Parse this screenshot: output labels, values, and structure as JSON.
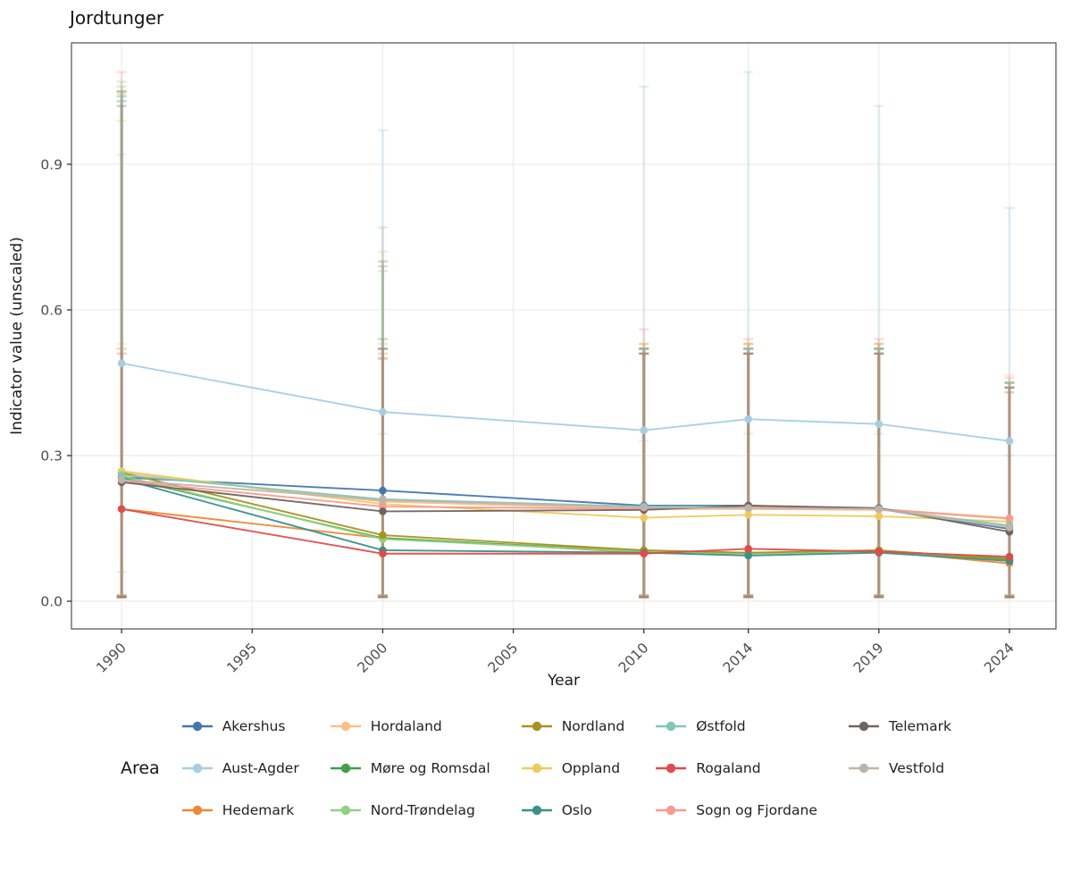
{
  "chart_data": {
    "type": "line",
    "title": "Jordtunger",
    "xlabel": "Year",
    "ylabel": "Indicator value (unscaled)",
    "legend_title": "Area",
    "legend_position": "bottom",
    "grid": "major",
    "x": [
      1990,
      2000,
      2010,
      2014,
      2019,
      2024
    ],
    "x_tick_labels": [
      "1990",
      "1995",
      "2000",
      "2005",
      "2010",
      "2014",
      "2019",
      "2024"
    ],
    "x_ticks": [
      1990,
      1995,
      2000,
      2005,
      2010,
      2014,
      2019,
      2024
    ],
    "y_tick_labels": [
      "0.0",
      "0.3",
      "0.6",
      "0.9"
    ],
    "y_ticks": [
      0.0,
      0.3,
      0.6,
      0.9
    ],
    "ylim": [
      -0.057,
      1.15
    ],
    "xlim": [
      1988.08,
      2025.78
    ],
    "series": [
      {
        "name": "Akershus",
        "color": "#4478AB",
        "values": [
          0.255,
          0.228,
          0.197,
          0.197,
          0.19,
          0.149
        ],
        "err_hi": [
          1.03,
          0.52,
          0.52,
          0.52,
          0.52,
          0.44
        ],
        "err_lo": [
          0.01,
          0.012,
          0.01,
          0.012,
          0.012,
          0.01
        ]
      },
      {
        "name": "Aust-Agder",
        "color": "#A6CEE3",
        "values": [
          0.49,
          0.39,
          0.352,
          0.375,
          0.365,
          0.33
        ],
        "err_hi": [
          0.92,
          0.97,
          1.06,
          1.09,
          1.02,
          0.81
        ],
        "err_lo": [
          0.06,
          0.345,
          0.33,
          0.345,
          0.345,
          0.3
        ]
      },
      {
        "name": "Hedemark",
        "color": "#EF8733",
        "values": [
          0.19,
          0.13,
          0.1,
          0.098,
          0.103,
          0.078
        ],
        "err_hi": [
          0.52,
          0.51,
          0.51,
          0.51,
          0.51,
          0.44
        ],
        "err_lo": [
          0.008,
          0.01,
          0.008,
          0.01,
          0.01,
          0.008
        ]
      },
      {
        "name": "Hordaland",
        "color": "#FAC089",
        "values": [
          0.265,
          0.205,
          0.19,
          0.19,
          0.188,
          0.17
        ],
        "err_hi": [
          0.53,
          0.72,
          0.52,
          0.53,
          0.53,
          0.465
        ],
        "err_lo": [
          0.012,
          0.012,
          0.012,
          0.012,
          0.012,
          0.012
        ]
      },
      {
        "name": "Møre og Romsdal",
        "color": "#3FA047",
        "values": [
          0.255,
          0.13,
          0.103,
          0.099,
          0.104,
          0.088
        ],
        "err_hi": [
          1.05,
          0.54,
          0.52,
          0.51,
          0.52,
          0.44
        ],
        "err_lo": [
          0.01,
          0.01,
          0.01,
          0.01,
          0.01,
          0.01
        ]
      },
      {
        "name": "Nord-Trøndelag",
        "color": "#90D282",
        "values": [
          0.258,
          0.128,
          0.102,
          0.098,
          0.102,
          0.085
        ],
        "err_hi": [
          1.07,
          0.52,
          0.51,
          0.52,
          0.51,
          0.44
        ],
        "err_lo": [
          0.01,
          0.01,
          0.01,
          0.01,
          0.01,
          0.01
        ]
      },
      {
        "name": "Nordland",
        "color": "#A8931D",
        "values": [
          0.265,
          0.136,
          0.105,
          0.1,
          0.105,
          0.086
        ],
        "err_hi": [
          1.05,
          0.69,
          0.53,
          0.53,
          0.53,
          0.45
        ],
        "err_lo": [
          0.008,
          0.008,
          0.008,
          0.008,
          0.008,
          0.008
        ]
      },
      {
        "name": "Oppland",
        "color": "#EDCB5E",
        "values": [
          0.268,
          0.2,
          0.172,
          0.178,
          0.175,
          0.164
        ],
        "err_hi": [
          0.99,
          0.5,
          0.53,
          0.53,
          0.52,
          0.45
        ],
        "err_lo": [
          0.012,
          0.012,
          0.012,
          0.012,
          0.012,
          0.012
        ]
      },
      {
        "name": "Oslo",
        "color": "#39918A",
        "values": [
          0.252,
          0.105,
          0.1,
          0.094,
          0.1,
          0.083
        ],
        "err_hi": [
          1.04,
          0.7,
          0.52,
          0.52,
          0.52,
          0.45
        ],
        "err_lo": [
          0.01,
          0.01,
          0.01,
          0.01,
          0.01,
          0.01
        ]
      },
      {
        "name": "Østfold",
        "color": "#82C6B8",
        "values": [
          0.26,
          0.21,
          0.195,
          0.195,
          0.19,
          0.156
        ],
        "err_hi": [
          1.06,
          0.68,
          0.52,
          0.52,
          0.52,
          0.45
        ],
        "err_lo": [
          0.012,
          0.012,
          0.012,
          0.012,
          0.012,
          0.012
        ]
      },
      {
        "name": "Rogaland",
        "color": "#E04B4B",
        "values": [
          0.19,
          0.098,
          0.098,
          0.108,
          0.102,
          0.092
        ],
        "err_hi": [
          0.51,
          0.5,
          0.51,
          0.51,
          0.51,
          0.43
        ],
        "err_lo": [
          0.008,
          0.008,
          0.008,
          0.008,
          0.008,
          0.008
        ]
      },
      {
        "name": "Sogn og Fjordane",
        "color": "#FA9A8F",
        "values": [
          0.248,
          0.195,
          0.19,
          0.195,
          0.19,
          0.171
        ],
        "err_hi": [
          1.09,
          0.53,
          0.56,
          0.54,
          0.54,
          0.46
        ],
        "err_lo": [
          0.012,
          0.012,
          0.012,
          0.012,
          0.012,
          0.012
        ]
      },
      {
        "name": "Telemark",
        "color": "#71645F",
        "values": [
          0.245,
          0.185,
          0.188,
          0.197,
          0.192,
          0.143
        ],
        "err_hi": [
          1.02,
          0.52,
          0.51,
          0.51,
          0.51,
          0.44
        ],
        "err_lo": [
          0.01,
          0.01,
          0.01,
          0.01,
          0.01,
          0.01
        ]
      },
      {
        "name": "Vestfold",
        "color": "#BFB4AC",
        "values": [
          0.25,
          0.208,
          0.193,
          0.192,
          0.19,
          0.152
        ],
        "err_hi": [
          1.045,
          0.77,
          0.52,
          0.52,
          0.52,
          0.44
        ],
        "err_lo": [
          0.012,
          0.012,
          0.012,
          0.012,
          0.012,
          0.012
        ]
      }
    ]
  },
  "colors": {
    "panel_border": "#4D4D4D",
    "gridline": "#EBEBEB",
    "tick": "#333333",
    "tick_label": "#4D4D4D"
  }
}
